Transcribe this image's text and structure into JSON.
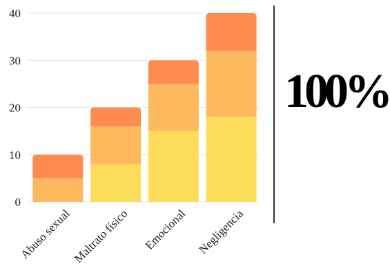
{
  "chart_data": {
    "type": "bar",
    "stacked": true,
    "categories": [
      "Abuso sexual",
      "Maltrato físico",
      "Emocional",
      "Negligencia"
    ],
    "series": [
      {
        "values": [
          0,
          8,
          15,
          18
        ],
        "color": "#FDDC5C"
      },
      {
        "values": [
          5,
          8,
          10,
          14
        ],
        "color": "#FDB95E"
      },
      {
        "values": [
          5,
          4,
          5,
          8
        ],
        "color": "#FD8C4E"
      }
    ],
    "yticks": [
      0,
      10,
      20,
      30,
      40
    ],
    "ylim": [
      0,
      40
    ],
    "grid": true
  },
  "stat": {
    "value": "100%"
  }
}
